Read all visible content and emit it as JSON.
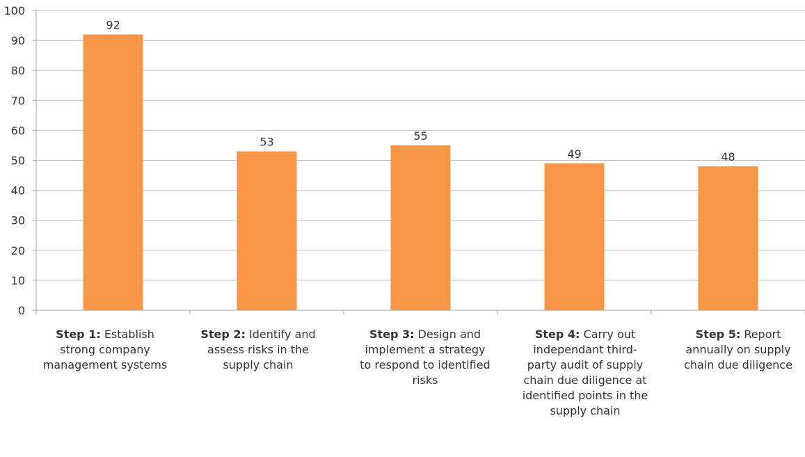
{
  "chart_data": {
    "type": "bar",
    "categories": [
      {
        "step": "Step 1:",
        "text": "Establish strong company management systems"
      },
      {
        "step": "Step 2:",
        "text": "Identify and assess risks in the supply chain"
      },
      {
        "step": "Step 3:",
        "text": "Design and implement a strategy to respond to identified risks"
      },
      {
        "step": "Step 4:",
        "text": "Carry out independant third-party audit of supply chain due diligence at identified points in the supply chain"
      },
      {
        "step": "Step 5:",
        "text": "Report annually on supply chain due diligence"
      }
    ],
    "values": [
      92,
      53,
      55,
      49,
      48
    ],
    "data_labels": [
      "92",
      "53",
      "55",
      "49",
      "48"
    ],
    "ylim": [
      0,
      100
    ],
    "yticks": [
      "0",
      "10",
      "20",
      "30",
      "40",
      "50",
      "60",
      "70",
      "80",
      "90",
      "100"
    ],
    "grid": true,
    "legend": "none",
    "title": "",
    "xlabel": "",
    "ylabel": ""
  },
  "colors": {
    "bar": "#f79646",
    "grid": "#bfbfbf",
    "axis": "#a6a6a6",
    "text": "#333333"
  }
}
